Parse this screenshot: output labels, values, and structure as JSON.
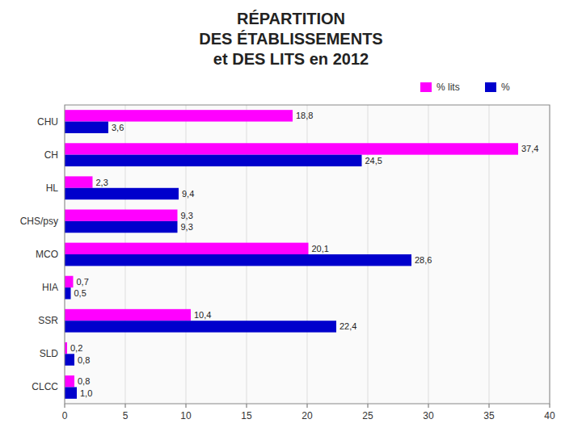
{
  "chart_data": {
    "type": "bar",
    "orientation": "horizontal",
    "title": "RÉPARTITION\nDES ÉTABLISSEMENTS\net DES LITS en 2012",
    "categories": [
      "CLCC",
      "SLD",
      "SSR",
      "HIA",
      "MCO",
      "CHS/psy",
      "HL",
      "CH",
      "CHU"
    ],
    "series": [
      {
        "name": "% lits",
        "color": "#FF00FF",
        "values": [
          0.8,
          0.2,
          10.4,
          0.7,
          20.1,
          9.3,
          2.3,
          37.4,
          18.8
        ],
        "value_labels": [
          "0,8",
          "0,2",
          "10,4",
          "0,7",
          "20,1",
          "9,3",
          "2,3",
          "37,4",
          "18,8"
        ]
      },
      {
        "name": "%",
        "color": "#0000CC",
        "values": [
          1.0,
          0.8,
          22.4,
          0.5,
          28.6,
          9.3,
          9.4,
          24.5,
          3.6
        ],
        "value_labels": [
          "1,0",
          "0,8",
          "22,4",
          "0,5",
          "28,6",
          "9,3",
          "9,4",
          "24,5",
          "3,6"
        ]
      }
    ],
    "xlim": [
      0,
      40
    ],
    "xticks": [
      0,
      5,
      10,
      15,
      20,
      25,
      30,
      35,
      40
    ],
    "grid": true,
    "data_labels": true,
    "legend": "upper right"
  }
}
